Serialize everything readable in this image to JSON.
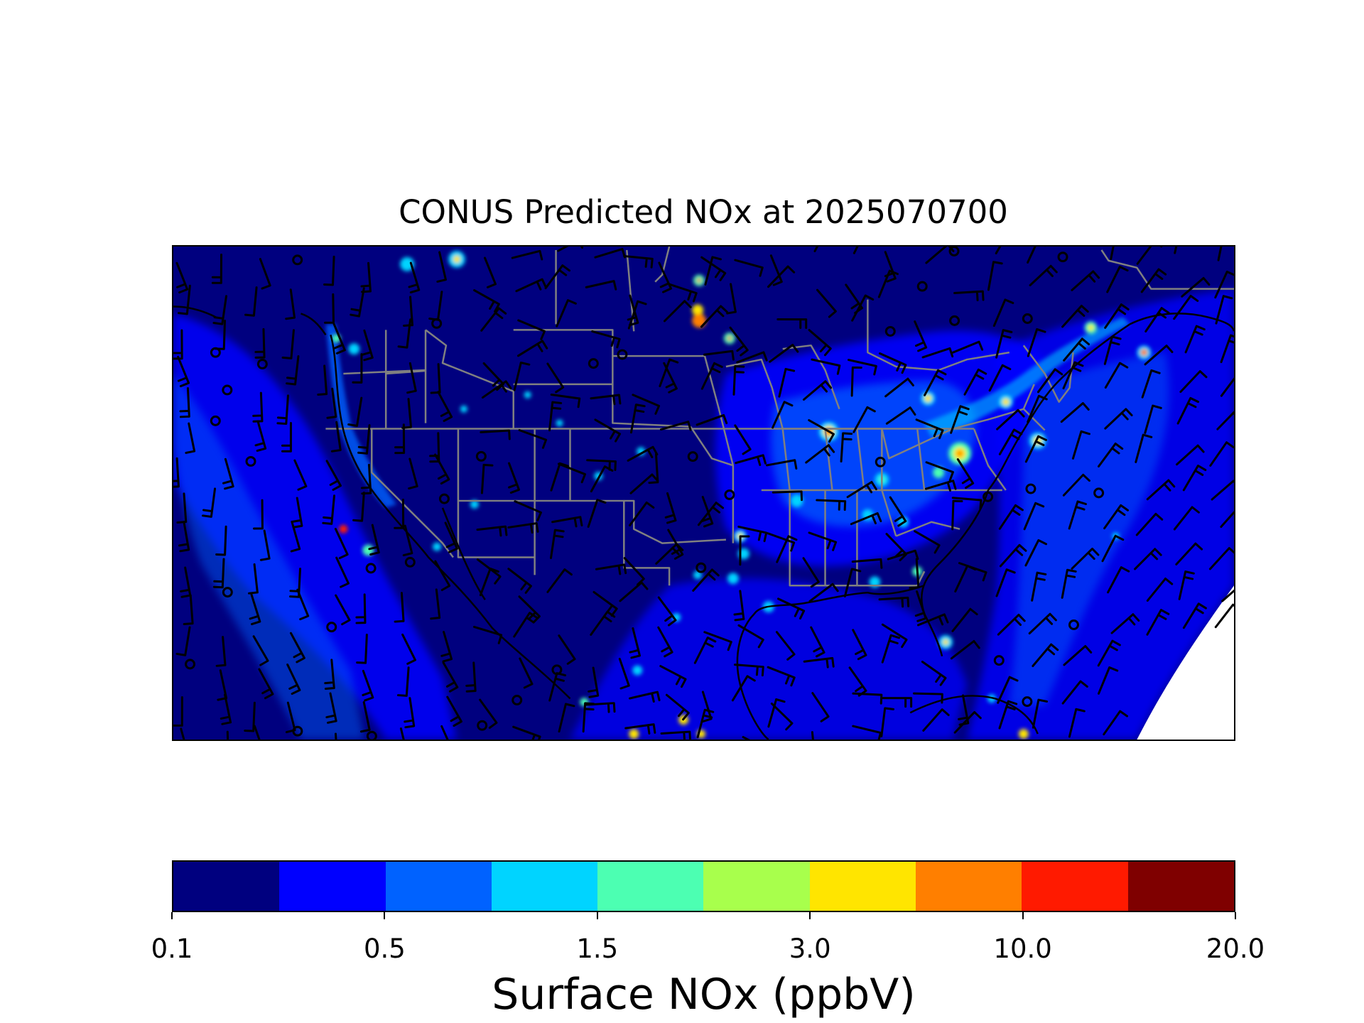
{
  "title": "CONUS Predicted NOx at 2025070700",
  "colorbar": {
    "label": "Surface NOx (ppbV)",
    "colors": [
      "#00007f",
      "#0000ff",
      "#0062ff",
      "#00d4ff",
      "#4cffb2",
      "#a8ff4c",
      "#ffe500",
      "#ff7f00",
      "#ff1a00",
      "#7f0000"
    ],
    "tick_labels": [
      "0.1",
      "0.5",
      "1.5",
      "3.0",
      "10.0",
      "20.0"
    ]
  },
  "map": {
    "region": "CONUS",
    "variable": "Surface NOx",
    "units": "ppbV",
    "overlays": [
      "state-boundaries",
      "coastlines",
      "wind-barbs"
    ],
    "no_data_region": "white area lower-right corner"
  }
}
